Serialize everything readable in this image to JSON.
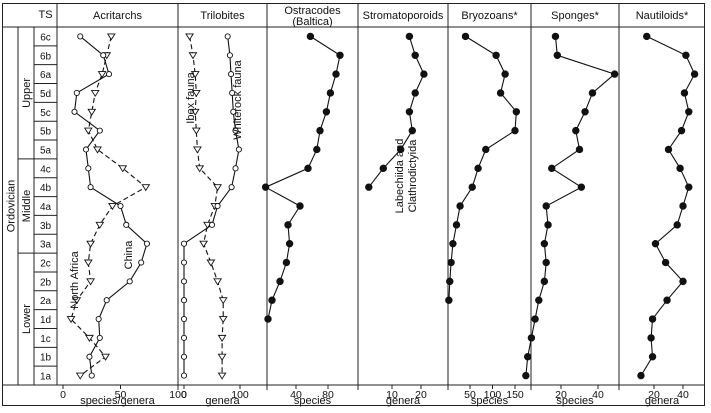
{
  "chart_data": {
    "type": "line",
    "title": "",
    "stratigraphy": {
      "period": "Ordovician",
      "epochs": [
        "Upper",
        "Middle",
        "Lower"
      ],
      "ts_header": "TS",
      "stages": [
        "6c",
        "6b",
        "6a",
        "5d",
        "5c",
        "5b",
        "5a",
        "4c",
        "4b",
        "4a",
        "3b",
        "3a",
        "2c",
        "2b",
        "2a",
        "1d",
        "1c",
        "1b",
        "1a"
      ]
    },
    "panels": [
      {
        "id": "acritarchs",
        "title": "Acritarchs",
        "xlabel": "species/genera",
        "xlim": [
          0,
          100
        ],
        "ticks": [
          0,
          50,
          100
        ],
        "tick_labels": [
          "0",
          "50",
          "100"
        ],
        "series": [
          {
            "name": "North Africa",
            "marker": "triangle",
            "line": "dashed",
            "values": {
              "6c": 42,
              "6b": 38,
              "6a": 34,
              "5d": 28,
              "5c": 25,
              "5b": 22,
              "5a": 30,
              "4c": 52,
              "4b": 72,
              "4a": 43,
              "3b": 32,
              "3a": 24,
              "2c": 22,
              "2b": 24,
              "2a": 12,
              "1d": 7,
              "1c": 23,
              "1b": 37,
              "1a": 15
            }
          },
          {
            "name": "China",
            "marker": "circle",
            "line": "solid",
            "values": {
              "6c": 15,
              "6b": 35,
              "6a": 40,
              "5d": 12,
              "5c": 10,
              "5b": 32,
              "5a": 20,
              "4c": 22,
              "4b": 24,
              "4a": 50,
              "3b": 55,
              "3a": 73,
              "2c": 68,
              "2b": 58,
              "2a": 38,
              "1d": 31,
              "1c": 32,
              "1b": 23,
              "1a": 25
            }
          }
        ],
        "labels": [
          "North Africa",
          "China"
        ]
      },
      {
        "id": "trilobites",
        "title": "Trilobites",
        "xlabel": "genera",
        "xlim": [
          0,
          130
        ],
        "ticks": [
          0,
          100
        ],
        "tick_labels": [
          "0",
          "100"
        ],
        "series": [
          {
            "name": "Ibex fauna",
            "marker": "triangle",
            "line": "dashed",
            "values": {
              "6c": 10,
              "6b": 16,
              "6a": 20,
              "5d": 22,
              "5c": 20,
              "5b": 22,
              "5a": 24,
              "4c": 28,
              "4b": 60,
              "4a": 55,
              "3b": 42,
              "3a": 35,
              "2c": 48,
              "2b": 60,
              "2a": 70,
              "1d": 70,
              "1c": 68,
              "1b": 68,
              "1a": 68
            }
          },
          {
            "name": "Whiterock fauna",
            "marker": "circle",
            "line": "solid",
            "values": {
              "6c": 78,
              "6b": 82,
              "6a": 84,
              "5d": 86,
              "5c": 88,
              "5b": 92,
              "5a": 98,
              "4c": 92,
              "4b": 85,
              "4a": 60,
              "3b": 50,
              "3a": 0,
              "2c": 0,
              "2b": 0,
              "2a": 0,
              "1d": 0,
              "1c": 0,
              "1b": 0,
              "1a": 0
            }
          }
        ],
        "labels": [
          "Ibex fauna",
          "Whiterock fauna"
        ]
      },
      {
        "id": "ostracodes",
        "title": "Ostracodes",
        "subtitle": "(Baltica)",
        "xlabel": "species",
        "xlim": [
          0,
          115
        ],
        "ticks": [
          40,
          80
        ],
        "tick_labels": [
          "40",
          "80"
        ],
        "series": [
          {
            "name": "",
            "marker": "dot",
            "line": "solid",
            "values": {
              "6c": 58,
              "6b": 95,
              "6a": 90,
              "5d": 83,
              "5c": 78,
              "5b": 70,
              "5a": 66,
              "4c": 55,
              "4b": 2,
              "4a": 45,
              "3b": 30,
              "3a": 32,
              "2c": 28,
              "2b": 20,
              "2a": 10,
              "1d": 5,
              "1c": null,
              "1b": null,
              "1a": null
            }
          }
        ]
      },
      {
        "id": "stromatoporoids",
        "title": "Stromatoporoids",
        "xlabel": "genera",
        "xlim": [
          0,
          27
        ],
        "ticks": [
          10,
          20
        ],
        "tick_labels": [
          "10",
          "20"
        ],
        "series": [
          {
            "name": "",
            "marker": "dot",
            "line": "solid",
            "values": {
              "6c": 16,
              "6b": 18,
              "6a": 21,
              "5d": 18,
              "5c": 16,
              "5b": 17,
              "5a": 13,
              "4c": 7,
              "4b": 2,
              "4a": null,
              "3b": null,
              "3a": null,
              "2c": null,
              "2b": null,
              "2a": null,
              "1d": null,
              "1c": null,
              "1b": null,
              "1a": null
            }
          }
        ],
        "labels": [
          "Labechiida and",
          "Clathrodictyida"
        ]
      },
      {
        "id": "bryozoans",
        "title": "Bryozoans*",
        "xlabel": "species",
        "xlim": [
          0,
          180
        ],
        "ticks": [
          50,
          100,
          150
        ],
        "tick_labels": [
          "50",
          "100",
          "150"
        ],
        "series": [
          {
            "name": "",
            "marker": "dot",
            "line": "solid",
            "values": {
              "6c": 40,
              "6b": 108,
              "6a": 128,
              "5d": 118,
              "5c": 153,
              "5b": 150,
              "5a": 85,
              "4c": 68,
              "4b": 55,
              "4a": 28,
              "3b": 20,
              "3a": 12,
              "2c": 8,
              "2b": 5,
              "2a": 3,
              "1d": null,
              "1c": null,
              "1b": null,
              "1a": null
            }
          }
        ]
      },
      {
        "id": "sponges",
        "title": "Sponges*",
        "xlabel": "species",
        "xlim": [
          0,
          62
        ],
        "ticks": [
          20,
          40
        ],
        "tick_labels": [
          "20",
          "40"
        ],
        "series": [
          {
            "name": "",
            "marker": "dot",
            "line": "solid",
            "values": {
              "6c": 17,
              "6b": 18,
              "6a": 49,
              "5d": 37,
              "5c": 33,
              "5b": 28,
              "5a": 30,
              "4c": 15,
              "4b": 31,
              "4a": 12,
              "3b": 13,
              "3a": 11,
              "2c": 12,
              "2b": 11,
              "2a": 8,
              "1d": 6,
              "1c": 4,
              "1b": 2,
              "1a": 1
            }
          }
        ]
      },
      {
        "id": "nautiloids",
        "title": "Nautiloids*",
        "xlabel": "genera",
        "xlim": [
          0,
          62
        ],
        "ticks": [
          20,
          40
        ],
        "tick_labels": [
          "20",
          "40"
        ],
        "series": [
          {
            "name": "",
            "marker": "dot",
            "line": "solid",
            "values": {
              "6c": 15,
              "6b": 42,
              "6a": 48,
              "5d": 41,
              "5c": 44,
              "5b": 39,
              "5a": 30,
              "4c": 38,
              "4b": 44,
              "4a": 40,
              "3b": 36,
              "3a": 21,
              "2c": 28,
              "2b": 40,
              "2a": 29,
              "1d": 19,
              "1c": 18,
              "1b": 19,
              "1a": 11
            }
          }
        ]
      }
    ]
  }
}
